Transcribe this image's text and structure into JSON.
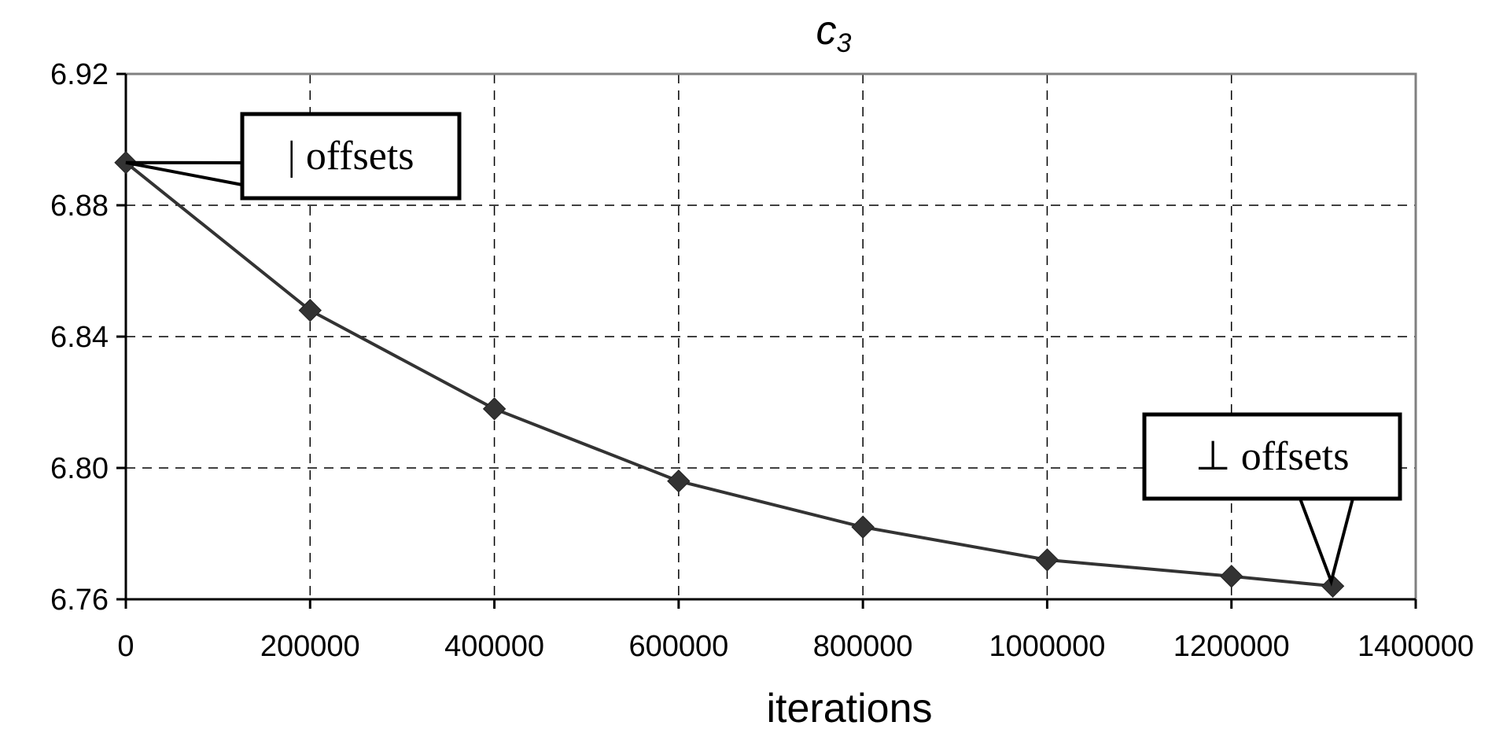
{
  "chart_data": {
    "type": "line",
    "title": "c",
    "title_subscript": "3",
    "xlabel": "iterations",
    "ylabel": "",
    "xlim": [
      0,
      1400000
    ],
    "ylim": [
      6.76,
      6.92
    ],
    "x_ticks": [
      "0",
      "200000",
      "400000",
      "600000",
      "800000",
      "1000000",
      "1200000",
      "1400000"
    ],
    "y_ticks": [
      "6.76",
      "6.80",
      "6.84",
      "6.88",
      "6.92"
    ],
    "grid": true,
    "series": [
      {
        "marker": "diamond",
        "color": "#333333",
        "x": [
          0,
          200000,
          400000,
          600000,
          800000,
          1000000,
          1200000,
          1310000
        ],
        "y": [
          6.893,
          6.848,
          6.818,
          6.796,
          6.782,
          6.772,
          6.767,
          6.764
        ]
      }
    ],
    "annotations": [
      {
        "text": "| offsets",
        "point_index": 0
      },
      {
        "text": "⊥ offsets",
        "point_index": 7
      }
    ]
  }
}
